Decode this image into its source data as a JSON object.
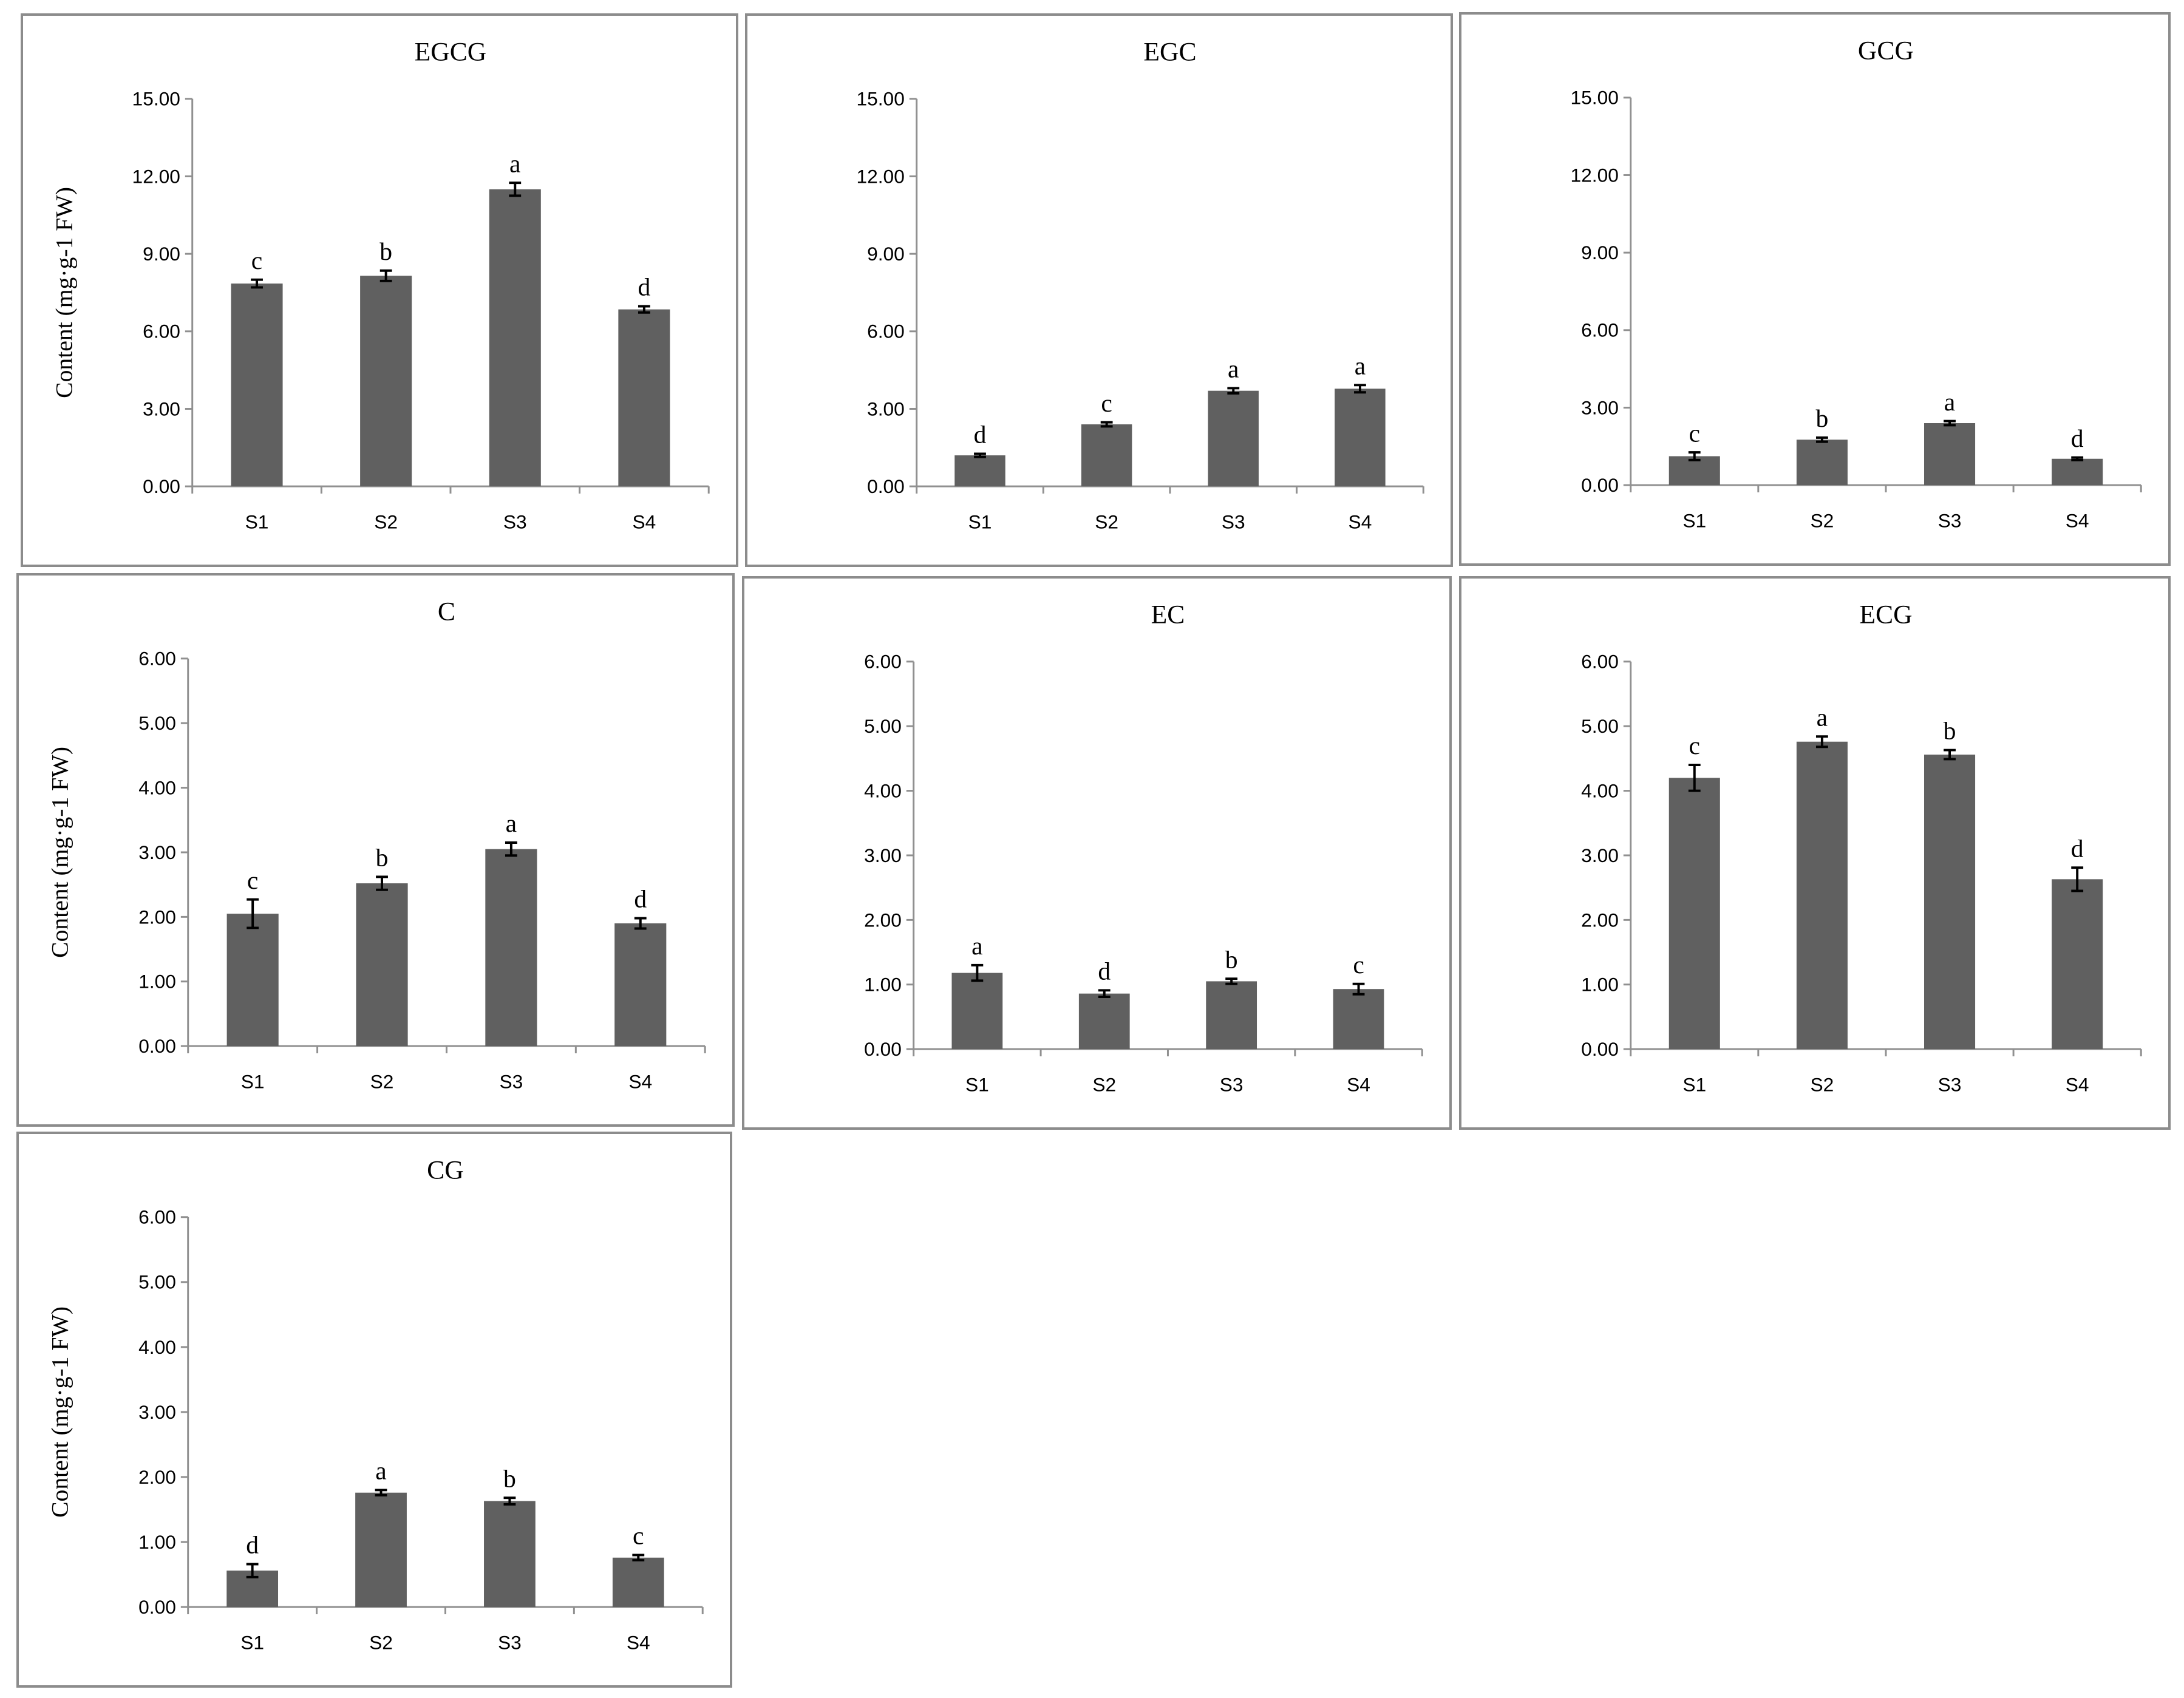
{
  "chart_data": [
    {
      "type": "bar",
      "title": "EGCG",
      "ylabel": "Content (mg·g-1 FW)",
      "categories": [
        "S1",
        "S2",
        "S3",
        "S4"
      ],
      "values": [
        7.85,
        8.15,
        11.5,
        6.85
      ],
      "errors": [
        0.15,
        0.2,
        0.25,
        0.12
      ],
      "letters": [
        "c",
        "b",
        "a",
        "d"
      ],
      "ylim": [
        0,
        15
      ],
      "yticks": [
        "0.00",
        "3.00",
        "6.00",
        "9.00",
        "12.00",
        "15.00"
      ]
    },
    {
      "type": "bar",
      "title": "EGC",
      "ylabel": "",
      "categories": [
        "S1",
        "S2",
        "S3",
        "S4"
      ],
      "values": [
        1.2,
        2.4,
        3.7,
        3.78
      ],
      "errors": [
        0.06,
        0.08,
        0.1,
        0.14
      ],
      "letters": [
        "d",
        "c",
        "a",
        "a"
      ],
      "ylim": [
        0,
        15
      ],
      "yticks": [
        "0.00",
        "3.00",
        "6.00",
        "9.00",
        "12.00",
        "15.00"
      ]
    },
    {
      "type": "bar",
      "title": "GCG",
      "ylabel": "",
      "categories": [
        "S1",
        "S2",
        "S3",
        "S4"
      ],
      "values": [
        1.12,
        1.76,
        2.4,
        1.02
      ],
      "errors": [
        0.15,
        0.08,
        0.08,
        0.05
      ],
      "letters": [
        "c",
        "b",
        "a",
        "d"
      ],
      "ylim": [
        0,
        15
      ],
      "yticks": [
        "0.00",
        "3.00",
        "6.00",
        "9.00",
        "12.00",
        "15.00"
      ]
    },
    {
      "type": "bar",
      "title": "C",
      "ylabel": "Content (mg·g-1 FW)",
      "categories": [
        "S1",
        "S2",
        "S3",
        "S4"
      ],
      "values": [
        2.05,
        2.52,
        3.05,
        1.9
      ],
      "errors": [
        0.22,
        0.1,
        0.1,
        0.08
      ],
      "letters": [
        "c",
        "b",
        "a",
        "d"
      ],
      "ylim": [
        0,
        6
      ],
      "yticks": [
        "0.00",
        "1.00",
        "2.00",
        "3.00",
        "4.00",
        "5.00",
        "6.00"
      ]
    },
    {
      "type": "bar",
      "title": "EC",
      "ylabel": "",
      "categories": [
        "S1",
        "S2",
        "S3",
        "S4"
      ],
      "values": [
        1.18,
        0.86,
        1.05,
        0.93
      ],
      "errors": [
        0.12,
        0.05,
        0.04,
        0.08
      ],
      "letters": [
        "a",
        "d",
        "b",
        "c"
      ],
      "ylim": [
        0,
        6
      ],
      "yticks": [
        "0.00",
        "1.00",
        "2.00",
        "3.00",
        "4.00",
        "5.00",
        "6.00"
      ]
    },
    {
      "type": "bar",
      "title": "ECG",
      "ylabel": "",
      "categories": [
        "S1",
        "S2",
        "S3",
        "S4"
      ],
      "values": [
        4.2,
        4.76,
        4.56,
        2.63
      ],
      "errors": [
        0.2,
        0.08,
        0.07,
        0.18
      ],
      "letters": [
        "c",
        "a",
        "b",
        "d"
      ],
      "ylim": [
        0,
        6
      ],
      "yticks": [
        "0.00",
        "1.00",
        "2.00",
        "3.00",
        "4.00",
        "5.00",
        "6.00"
      ]
    },
    {
      "type": "bar",
      "title": "CG",
      "ylabel": "Content (mg·g-1 FW)",
      "categories": [
        "S1",
        "S2",
        "S3",
        "S4"
      ],
      "values": [
        0.56,
        1.76,
        1.63,
        0.76
      ],
      "errors": [
        0.1,
        0.04,
        0.05,
        0.04
      ],
      "letters": [
        "d",
        "a",
        "b",
        "c"
      ],
      "ylim": [
        0,
        6
      ],
      "yticks": [
        "0.00",
        "1.00",
        "2.00",
        "3.00",
        "4.00",
        "5.00",
        "6.00"
      ]
    }
  ]
}
